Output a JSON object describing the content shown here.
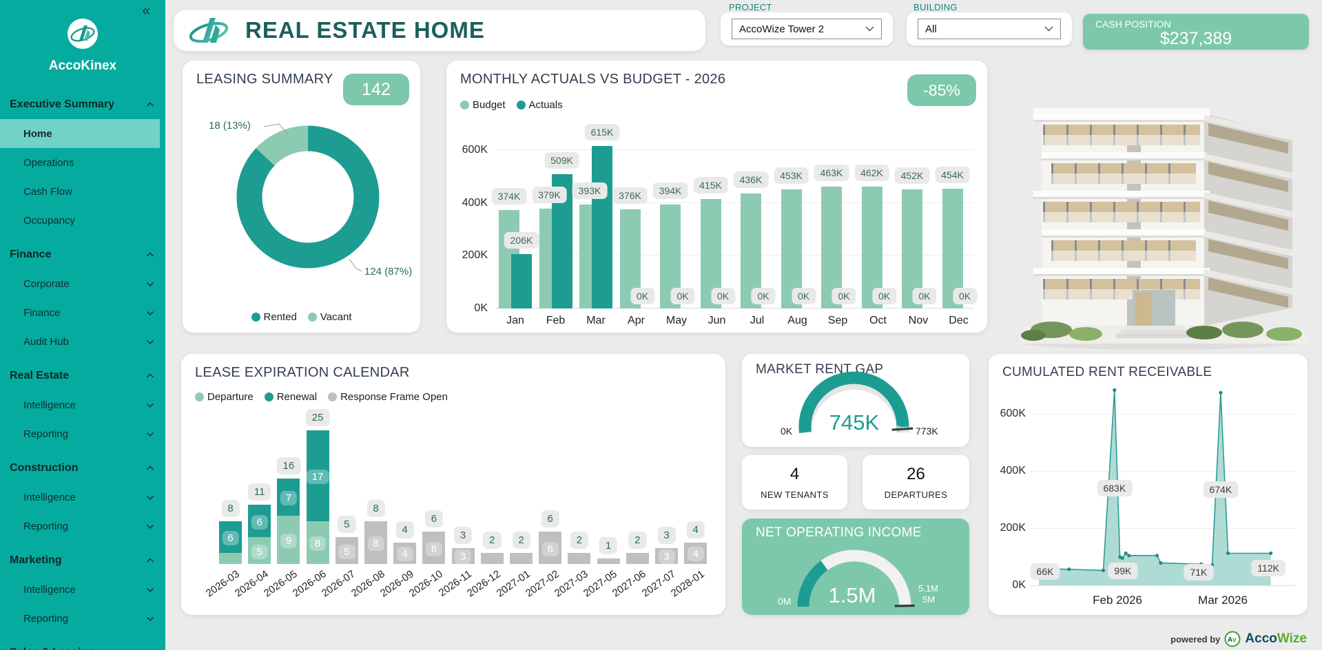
{
  "colors": {
    "teal": "#1D9C92",
    "light_green": "#8CCBB2",
    "badge_green": "#7DC8AB",
    "gray_series": "#BFBFBF",
    "sidebar_bg": "#06ABA0",
    "sidebar_active_bg": "#72D2C8",
    "header_title": "#1C5F5A",
    "card_title": "#333E50",
    "page_bg": "#EBEBEB"
  },
  "sidebar": {
    "collapse_glyph": "«",
    "brand": "AccoKinex",
    "sections": [
      {
        "label": "Executive Summary",
        "expanded": true,
        "items": [
          {
            "label": "Home",
            "active": true
          },
          {
            "label": "Operations"
          },
          {
            "label": "Cash Flow"
          },
          {
            "label": "Occupancy"
          }
        ]
      },
      {
        "label": "Finance",
        "expanded": true,
        "items": [
          {
            "label": "Corporate",
            "chevron": "down"
          },
          {
            "label": "Finance",
            "chevron": "down"
          },
          {
            "label": "Audit Hub",
            "chevron": "down"
          }
        ]
      },
      {
        "label": "Real Estate",
        "expanded": true,
        "items": [
          {
            "label": "Intelligence",
            "chevron": "down"
          },
          {
            "label": "Reporting",
            "chevron": "down"
          }
        ]
      },
      {
        "label": "Construction",
        "expanded": true,
        "items": [
          {
            "label": "Intelligence",
            "chevron": "down"
          },
          {
            "label": "Reporting",
            "chevron": "down"
          }
        ]
      },
      {
        "label": "Marketing",
        "expanded": true,
        "items": [
          {
            "label": "Intelligence",
            "chevron": "down"
          },
          {
            "label": "Reporting",
            "chevron": "down"
          }
        ]
      },
      {
        "label": "Sales & Leasing",
        "expanded": true,
        "items": []
      }
    ]
  },
  "header": {
    "title": "REAL ESTATE HOME"
  },
  "filters": {
    "project_label": "PROJECT",
    "project_value": "AccoWize Tower 2",
    "building_label": "BUILDING",
    "building_value": "All"
  },
  "cash_position": {
    "label": "CASH POSITION",
    "value": "$237,389"
  },
  "chart_data": [
    {
      "id": "leasing_summary",
      "type": "pie",
      "title": "LEASING SUMMARY",
      "badge": "142",
      "slices": [
        {
          "label": "Rented",
          "value": 124,
          "pct": 87,
          "color": "#1D9C92",
          "callout": "124 (87%)"
        },
        {
          "label": "Vacant",
          "value": 18,
          "pct": 13,
          "color": "#8CCBB2",
          "callout": "18 (13%)"
        }
      ],
      "legend": [
        "Rented",
        "Vacant"
      ]
    },
    {
      "id": "monthly_actuals_vs_budget",
      "type": "bar",
      "title": "MONTHLY ACTUALS VS BUDGET - 2026",
      "badge": "-85%",
      "categories": [
        "Jan",
        "Feb",
        "Mar",
        "Apr",
        "May",
        "Jun",
        "Jul",
        "Aug",
        "Sep",
        "Oct",
        "Nov",
        "Dec"
      ],
      "series": [
        {
          "name": "Budget",
          "color": "#8CCBB2",
          "unit": "K",
          "values": [
            374,
            379,
            393,
            376,
            394,
            415,
            436,
            453,
            463,
            462,
            452,
            454
          ]
        },
        {
          "name": "Actuals",
          "color": "#1D9C92",
          "unit": "K",
          "values": [
            206,
            509,
            615,
            0,
            0,
            0,
            0,
            0,
            0,
            0,
            0,
            0
          ]
        }
      ],
      "ylim": [
        0,
        650
      ],
      "yticks": [
        0,
        200,
        400,
        600
      ],
      "ytick_unit": "K",
      "legend_position": "top-left"
    },
    {
      "id": "lease_expiration_calendar",
      "type": "bar",
      "stacked": true,
      "title": "LEASE EXPIRATION CALENDAR",
      "categories": [
        "2026-03",
        "2026-04",
        "2026-05",
        "2026-06",
        "2026-07",
        "2026-08",
        "2026-09",
        "2026-10",
        "2026-11",
        "2026-12",
        "2027-01",
        "2027-02",
        "2027-03",
        "2027-05",
        "2027-06",
        "2027-07",
        "2028-01"
      ],
      "series": [
        {
          "name": "Departure",
          "color": "#8CCBB2",
          "values": [
            2,
            5,
            9,
            8,
            0,
            0,
            0,
            0,
            0,
            0,
            0,
            0,
            0,
            0,
            0,
            0,
            0
          ]
        },
        {
          "name": "Renewal",
          "color": "#1D9C92",
          "values": [
            6,
            6,
            7,
            17,
            0,
            0,
            0,
            0,
            0,
            0,
            0,
            0,
            0,
            0,
            0,
            0,
            0
          ]
        },
        {
          "name": "Response Frame Open",
          "color": "#BFBFBF",
          "values": [
            0,
            0,
            0,
            0,
            5,
            8,
            4,
            6,
            3,
            2,
            2,
            6,
            2,
            1,
            2,
            3,
            4
          ]
        }
      ],
      "totals": [
        8,
        11,
        16,
        25,
        5,
        8,
        4,
        6,
        3,
        2,
        2,
        6,
        2,
        1,
        2,
        3,
        4
      ],
      "ylim": [
        0,
        27
      ],
      "grid": false,
      "legend_position": "top-left"
    },
    {
      "id": "cumulated_rent_receivable",
      "type": "area",
      "title": "CUMULATED RENT RECEIVABLE",
      "color": "#2A9D93",
      "fill_color": "#A5D8D0",
      "unit": "K",
      "ylim": [
        0,
        720
      ],
      "yticks": [
        0,
        200,
        400,
        600
      ],
      "points": [
        {
          "x": 0.037,
          "y": 66
        },
        {
          "x": 0.055,
          "y": 60
        },
        {
          "x": 0.075,
          "y": 58
        },
        {
          "x": 0.16,
          "y": 56
        },
        {
          "x": 0.3,
          "y": 52
        },
        {
          "x": 0.346,
          "y": 683
        },
        {
          "x": 0.368,
          "y": 99
        },
        {
          "x": 0.378,
          "y": 95
        },
        {
          "x": 0.392,
          "y": 112
        },
        {
          "x": 0.405,
          "y": 104
        },
        {
          "x": 0.52,
          "y": 104
        },
        {
          "x": 0.535,
          "y": 78
        },
        {
          "x": 0.7,
          "y": 74
        },
        {
          "x": 0.745,
          "y": 71
        },
        {
          "x": 0.78,
          "y": 674
        },
        {
          "x": 0.81,
          "y": 112
        },
        {
          "x": 0.985,
          "y": 112
        }
      ],
      "point_labels": [
        {
          "text": "66K",
          "x": 0.062,
          "y": 46
        },
        {
          "text": "683K",
          "x": 0.346,
          "y": 337
        },
        {
          "text": "99K",
          "x": 0.38,
          "y": 48
        },
        {
          "text": "71K",
          "x": 0.69,
          "y": 43
        },
        {
          "text": "674K",
          "x": 0.78,
          "y": 333
        },
        {
          "text": "112K",
          "x": 0.975,
          "y": 58
        }
      ],
      "x_labels": [
        {
          "text": "Feb 2026",
          "x": 0.358
        },
        {
          "text": "Mar 2026",
          "x": 0.789
        }
      ]
    }
  ],
  "market_rent_gap": {
    "title": "MARKET RENT GAP",
    "value": "745K",
    "value_num": 745,
    "min_label": "0K",
    "max_label": "773K",
    "max_num": 773,
    "fill_color": "#1D9C92",
    "track_color": "#E5E5E5",
    "target_band_color": "#A8D8BE"
  },
  "kpi_cards": [
    {
      "value": "4",
      "label": "NEW TENANTS"
    },
    {
      "value": "26",
      "label": "DEPARTURES"
    }
  ],
  "net_operating_income": {
    "title": "NET OPERATING INCOME",
    "value": "1.5M",
    "value_num": 1.5,
    "min_label": "0M",
    "max_label": "5M",
    "max_num": 5,
    "target_label": "5.1M",
    "bg_color": "#7DC8AB",
    "fill_color": "#1D9C92",
    "track_color": "#F1F1F1"
  },
  "footer": {
    "powered_by": "powered by",
    "logo_text": "Av",
    "brand_a": "Acco",
    "brand_b": "Wize"
  }
}
